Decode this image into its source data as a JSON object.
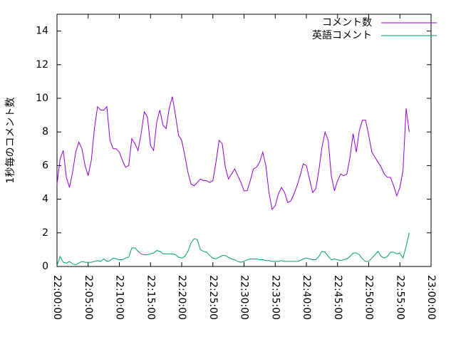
{
  "chart_data": {
    "type": "line",
    "ylabel": "1秒毎のコメント数",
    "x": [
      "22:00:00",
      "22:00:30",
      "22:01:00",
      "22:01:30",
      "22:02:00",
      "22:02:30",
      "22:03:00",
      "22:03:30",
      "22:04:00",
      "22:04:30",
      "22:05:00",
      "22:05:30",
      "22:06:00",
      "22:06:30",
      "22:07:00",
      "22:07:30",
      "22:08:00",
      "22:08:30",
      "22:09:00",
      "22:09:30",
      "22:10:00",
      "22:10:30",
      "22:11:00",
      "22:11:30",
      "22:12:00",
      "22:12:30",
      "22:13:00",
      "22:13:30",
      "22:14:00",
      "22:14:30",
      "22:15:00",
      "22:15:30",
      "22:16:00",
      "22:16:30",
      "22:17:00",
      "22:17:30",
      "22:18:00",
      "22:18:30",
      "22:19:00",
      "22:19:30",
      "22:20:00",
      "22:20:30",
      "22:21:00",
      "22:21:30",
      "22:22:00",
      "22:22:30",
      "22:23:00",
      "22:23:30",
      "22:24:00",
      "22:24:30",
      "22:25:00",
      "22:25:30",
      "22:26:00",
      "22:26:30",
      "22:27:00",
      "22:27:30",
      "22:28:00",
      "22:28:30",
      "22:29:00",
      "22:29:30",
      "22:30:00",
      "22:30:30",
      "22:31:00",
      "22:31:30",
      "22:32:00",
      "22:32:30",
      "22:33:00",
      "22:33:30",
      "22:34:00",
      "22:34:30",
      "22:35:00",
      "22:35:30",
      "22:36:00",
      "22:36:30",
      "22:37:00",
      "22:37:30",
      "22:38:00",
      "22:38:30",
      "22:39:00",
      "22:39:30",
      "22:40:00",
      "22:40:30",
      "22:41:00",
      "22:41:30",
      "22:42:00",
      "22:42:30",
      "22:43:00",
      "22:43:30",
      "22:44:00",
      "22:44:30",
      "22:45:00",
      "22:45:30",
      "22:46:00",
      "22:46:30",
      "22:47:00",
      "22:47:30",
      "22:48:00",
      "22:48:30",
      "22:49:00",
      "22:49:30",
      "22:50:00",
      "22:50:30",
      "22:51:00",
      "22:51:30",
      "22:52:00",
      "22:52:30",
      "22:53:00",
      "22:53:30",
      "22:54:00",
      "22:54:30",
      "22:55:00",
      "22:55:30",
      "22:56:00",
      "22:56:30"
    ],
    "series": [
      {
        "name": "コメント数",
        "color": "#9400d3",
        "values": [
          4.9,
          6.4,
          6.9,
          5.3,
          4.7,
          5.6,
          6.8,
          7.4,
          7.0,
          6.0,
          5.4,
          6.3,
          8.2,
          9.5,
          9.3,
          9.3,
          9.5,
          7.5,
          7.0,
          7.0,
          6.8,
          6.3,
          5.9,
          6.0,
          7.6,
          7.3,
          6.9,
          7.9,
          9.2,
          8.9,
          7.2,
          6.9,
          8.6,
          9.3,
          8.4,
          8.2,
          9.4,
          10.1,
          9.0,
          7.8,
          7.5,
          6.6,
          5.6,
          4.9,
          4.8,
          5.0,
          5.2,
          5.1,
          5.1,
          5.0,
          5.1,
          6.2,
          7.5,
          7.3,
          5.9,
          5.2,
          5.5,
          5.8,
          5.4,
          5.0,
          4.5,
          4.5,
          5.1,
          5.8,
          5.9,
          6.2,
          6.8,
          6.0,
          4.4,
          3.4,
          3.6,
          4.3,
          4.7,
          4.4,
          3.8,
          3.9,
          4.3,
          4.8,
          5.4,
          6.1,
          6.0,
          5.2,
          4.4,
          4.6,
          5.7,
          7.1,
          8.0,
          7.5,
          5.4,
          4.5,
          5.1,
          5.5,
          5.4,
          5.5,
          6.5,
          7.9,
          6.8,
          8.1,
          8.7,
          8.7,
          7.8,
          6.8,
          6.5,
          6.2,
          5.9,
          5.5,
          5.3,
          5.3,
          4.8,
          4.2,
          4.7,
          5.7,
          9.4,
          8.0
        ]
      },
      {
        "name": "英語コメント",
        "color": "#009e73",
        "values": [
          0.05,
          0.6,
          0.25,
          0.2,
          0.3,
          0.15,
          0.1,
          0.2,
          0.3,
          0.25,
          0.25,
          0.25,
          0.3,
          0.35,
          0.3,
          0.45,
          0.3,
          0.35,
          0.5,
          0.45,
          0.4,
          0.4,
          0.5,
          0.55,
          1.1,
          1.1,
          0.9,
          0.75,
          0.7,
          0.7,
          0.75,
          0.8,
          0.95,
          0.9,
          0.75,
          0.75,
          0.75,
          0.75,
          0.7,
          0.55,
          0.5,
          0.6,
          0.9,
          1.4,
          1.65,
          1.6,
          1.0,
          0.9,
          0.85,
          0.65,
          0.5,
          0.45,
          0.55,
          0.65,
          0.65,
          0.55,
          0.45,
          0.4,
          0.3,
          0.25,
          0.3,
          0.4,
          0.45,
          0.45,
          0.45,
          0.4,
          0.4,
          0.35,
          0.35,
          0.3,
          0.3,
          0.3,
          0.35,
          0.3,
          0.3,
          0.3,
          0.3,
          0.3,
          0.35,
          0.45,
          0.5,
          0.45,
          0.4,
          0.4,
          0.6,
          0.9,
          0.85,
          0.6,
          0.4,
          0.45,
          0.4,
          0.35,
          0.4,
          0.45,
          0.6,
          0.8,
          0.8,
          0.7,
          0.45,
          0.3,
          0.3,
          0.5,
          0.7,
          0.9,
          0.6,
          0.5,
          0.6,
          0.85,
          0.85,
          0.75,
          0.8,
          0.5,
          1.2,
          2.0
        ]
      }
    ],
    "xlim": [
      "22:00:00",
      "23:00:00"
    ],
    "xticks": [
      "22:00:00",
      "22:05:00",
      "22:10:00",
      "22:15:00",
      "22:20:00",
      "22:25:00",
      "22:30:00",
      "22:35:00",
      "22:40:00",
      "22:45:00",
      "22:50:00",
      "22:55:00",
      "23:00:00"
    ],
    "ylim": [
      0,
      15
    ],
    "yticks": [
      0,
      2,
      4,
      6,
      8,
      10,
      12,
      14
    ],
    "legend": "top-right"
  }
}
